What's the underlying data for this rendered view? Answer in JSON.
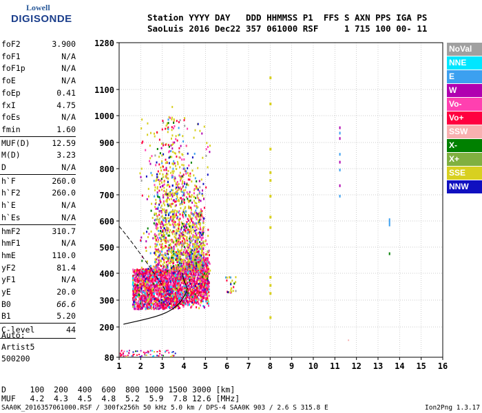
{
  "logo": {
    "line1": "Lowell",
    "line2": "DIGISONDE"
  },
  "header": {
    "row1": "Station YYYY DAY   DDD HHMMSS P1  FFS S AXN PPS IGA PS",
    "row2": "SaoLuis 2016 Dec22 357 061000 RSF     1 715 100 00- 11"
  },
  "params": [
    {
      "name": "foF2",
      "value": "3.900"
    },
    {
      "name": "foF1",
      "value": "N/A"
    },
    {
      "name": "foF1p",
      "value": "N/A"
    },
    {
      "name": "foE",
      "value": "N/A"
    },
    {
      "name": "foEp",
      "value": "0.41"
    },
    {
      "name": "fxI",
      "value": "4.75"
    },
    {
      "name": "foEs",
      "value": "N/A"
    },
    {
      "name": "fmin",
      "value": "1.60"
    },
    {
      "name": "MUF(D)",
      "value": "12.59"
    },
    {
      "name": "M(D)",
      "value": "3.23"
    },
    {
      "name": "D",
      "value": "N/A"
    },
    {
      "name": "h`F",
      "value": "260.0"
    },
    {
      "name": "h`F2",
      "value": "260.0"
    },
    {
      "name": "h`E",
      "value": "N/A"
    },
    {
      "name": "h`Es",
      "value": "N/A"
    },
    {
      "name": "hmF2",
      "value": "310.7"
    },
    {
      "name": "hmF1",
      "value": "N/A"
    },
    {
      "name": "hmE",
      "value": "110.0"
    },
    {
      "name": "yF2",
      "value": "81.4"
    },
    {
      "name": "yF1",
      "value": "N/A"
    },
    {
      "name": "yE",
      "value": "20.0"
    },
    {
      "name": "B0",
      "value": "66.6"
    },
    {
      "name": "B1",
      "value": "5.20"
    },
    {
      "name": "C-level",
      "value": "44"
    }
  ],
  "auto": {
    "label": "Auto:",
    "artist": "Artist5",
    "version": "500200"
  },
  "legend": [
    {
      "label": "NoVal",
      "color": "#a0a0a0"
    },
    {
      "label": "NNE",
      "color": "#00e6ff"
    },
    {
      "label": "E",
      "color": "#3ca0f0"
    },
    {
      "label": "W",
      "color": "#b000b0"
    },
    {
      "label": "Vo-",
      "color": "#ff40b0"
    },
    {
      "label": "Vo+",
      "color": "#ff0040"
    },
    {
      "label": "SSW",
      "color": "#f8b0b0"
    },
    {
      "label": "X-",
      "color": "#008000"
    },
    {
      "label": "X+",
      "color": "#80b040"
    },
    {
      "label": "SSE",
      "color": "#d8d020"
    },
    {
      "label": "NNW",
      "color": "#1010c0"
    }
  ],
  "muf_table": {
    "d_row": "D     100  200  400  600  800 1000 1500 3000 [km]",
    "muf_row": "MUF   4.2  4.3  4.5  4.8  5.2  5.9  7.8 12.6 [MHz]"
  },
  "footer": {
    "left": "SAA0K_2016357061000.RSF / 300fx256h 50 kHz 5.0 km / DPS-4 SAA0K 903 / 2.6 S 315.8 E",
    "right": "Ion2Png 1.3.17"
  },
  "chart_data": {
    "type": "scatter",
    "x_ticks": [
      "1",
      "2",
      "3",
      "4",
      "5",
      "6",
      "7",
      "8",
      "9",
      "10",
      "11",
      "12",
      "13",
      "14",
      "15",
      "16"
    ],
    "y_ticks": [
      "80",
      "200",
      "300",
      "400",
      "500",
      "600",
      "700",
      "800",
      "900",
      "1000",
      "1100",
      "1280"
    ],
    "xlim": [
      1,
      16
    ],
    "ylim": [
      80,
      1280
    ],
    "grid": true,
    "legend_position": "right"
  }
}
